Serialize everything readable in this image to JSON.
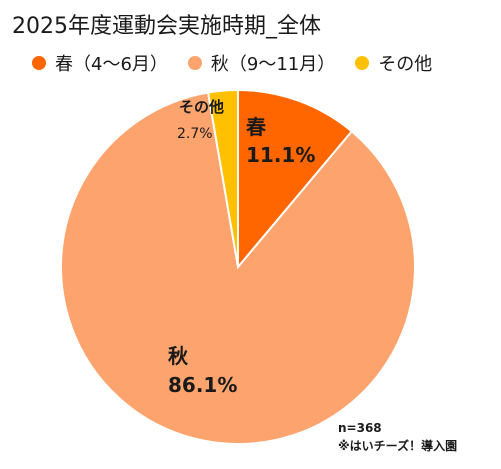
{
  "chart_data": {
    "type": "pie",
    "title": "2025年度運動会実施時期_全体",
    "slices": [
      {
        "name": "春（4〜6月）",
        "short_label": "春",
        "value": 11.1,
        "value_label": "11.1%",
        "color": "#FF6600"
      },
      {
        "name": "秋（9〜11月）",
        "short_label": "秋",
        "value": 86.1,
        "value_label": "86.1%",
        "color": "#FDA46E"
      },
      {
        "name": "その他",
        "short_label": "その他",
        "value": 2.7,
        "value_label": "2.7%",
        "color": "#FFC000"
      }
    ],
    "legend_placement": "top",
    "sample_size": "n=368",
    "source": "※はいチーズ！導入園"
  }
}
